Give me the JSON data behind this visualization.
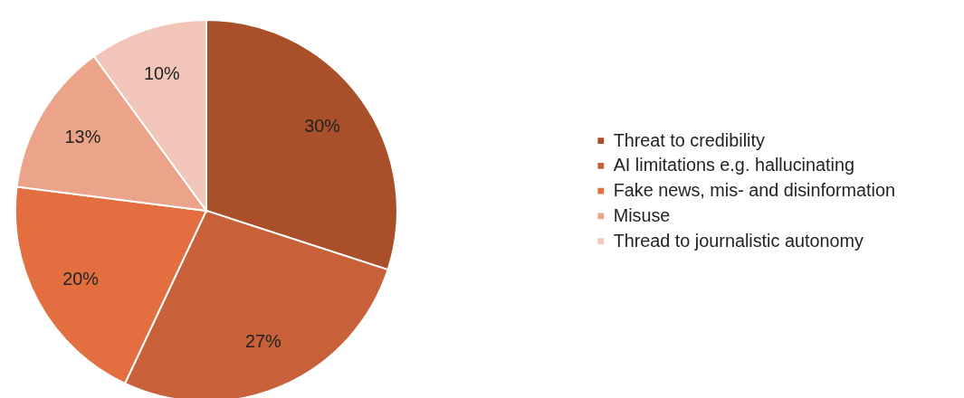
{
  "chart_data": {
    "type": "pie",
    "categories": [
      "Threat to credibility",
      "AI limitations e.g. hallucinating",
      "Fake news, mis- and disinformation",
      "Misuse",
      "Thread to journalistic autonomy"
    ],
    "values": [
      30,
      27,
      20,
      13,
      10
    ],
    "colors": [
      "#a9502a",
      "#c8603a",
      "#e36f40",
      "#eba48a",
      "#f1c5b8"
    ],
    "value_labels": [
      "30%",
      "27%",
      "20%",
      "13%",
      "10%"
    ],
    "legend": "right"
  }
}
